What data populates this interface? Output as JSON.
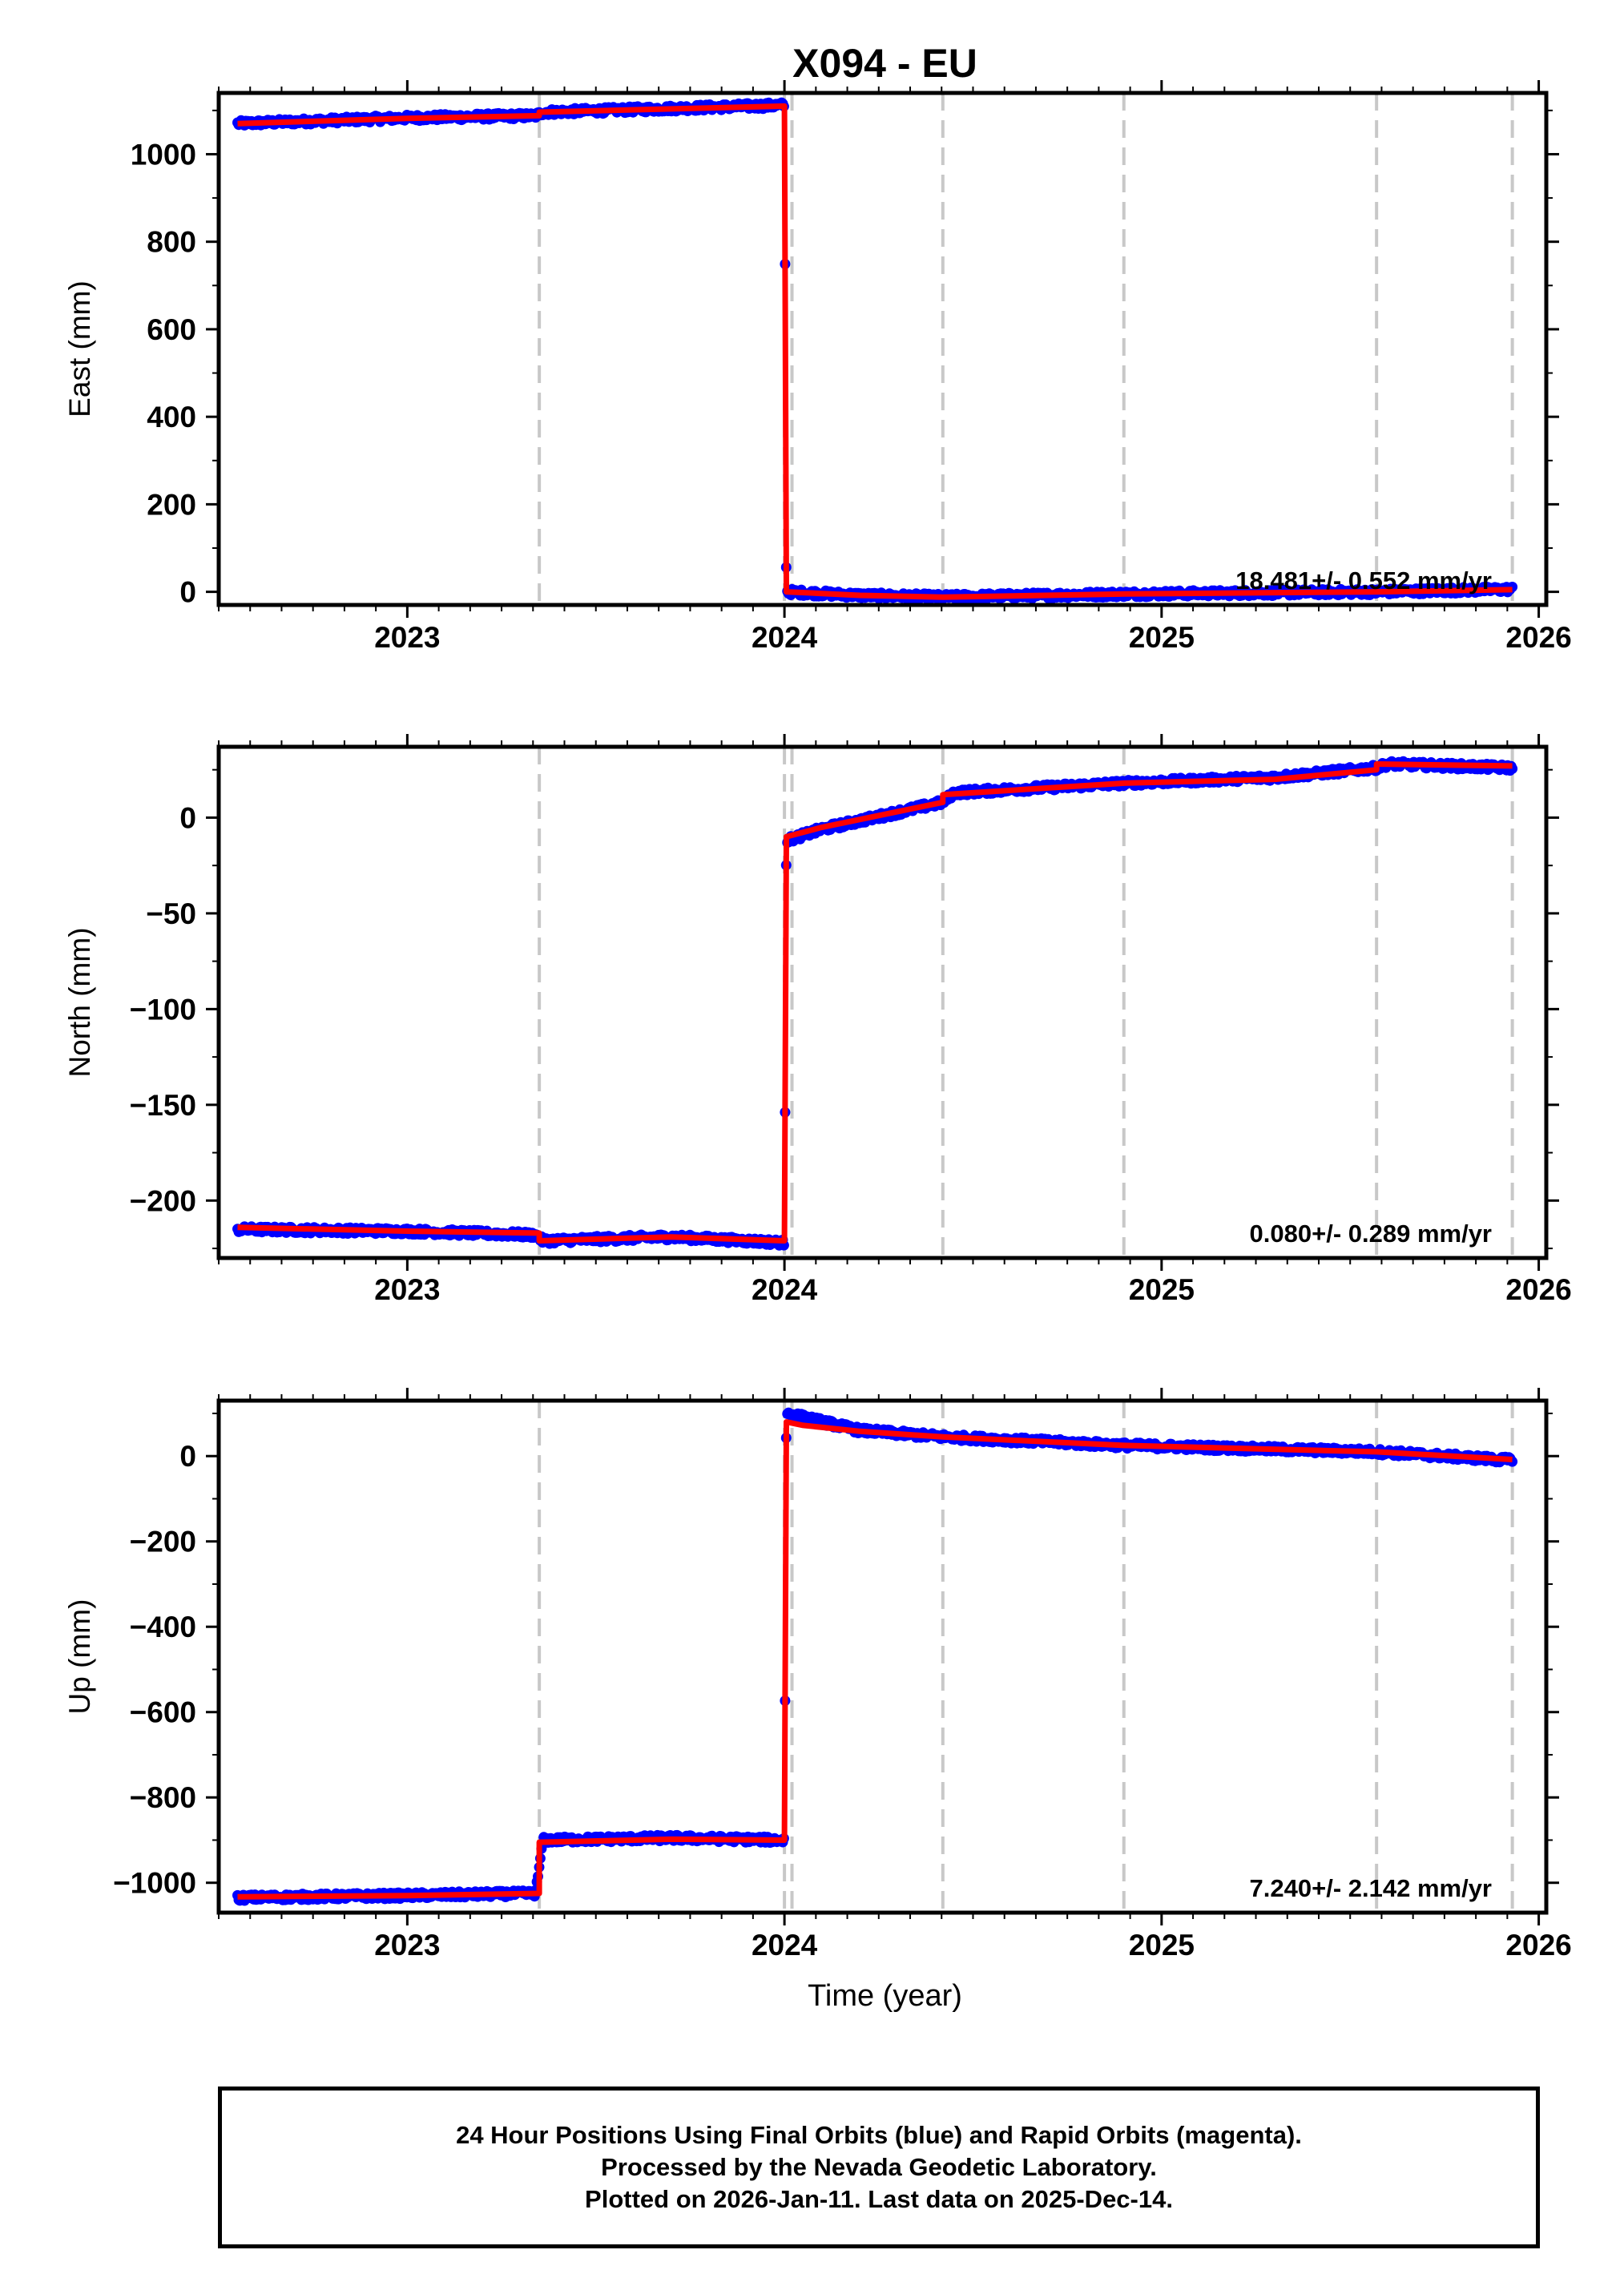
{
  "chart_data": [
    {
      "type": "scatter",
      "title": "X094 - EU",
      "xlabel": "",
      "ylabel": "East (mm)",
      "xlim": [
        2022.5,
        2026.02
      ],
      "ylim": [
        -30,
        1140
      ],
      "yticks": [
        0,
        200,
        400,
        600,
        800,
        1000
      ],
      "yticklabels": [
        "0",
        "200",
        "400",
        "600",
        "800",
        "1000"
      ],
      "xticks": [
        2023,
        2024,
        2025,
        2026
      ],
      "xticklabels": [
        "2023",
        "2024",
        "2025",
        "2026"
      ],
      "rate_label": "18.481+/- 0.552 mm/yr",
      "grid": false,
      "event_lines": [
        2023.35,
        2024.0,
        2024.02,
        2024.42,
        2024.9,
        2025.57,
        2025.93
      ],
      "series": [
        {
          "color": "#0000ff",
          "x": [
            2022.55,
            2023.0,
            2023.34,
            2023.36,
            2024.0,
            2024.005,
            2024.2,
            2024.42,
            2024.9,
            2025.57,
            2025.93
          ],
          "y": [
            1070,
            1083,
            1088,
            1096,
            1112,
            0,
            -8,
            -12,
            -5,
            0,
            6
          ]
        },
        {
          "color": "#ff0000",
          "x": [
            2022.55,
            2023.0,
            2023.35,
            2023.35,
            2024.0,
            2024.005,
            2024.2,
            2024.42,
            2024.9,
            2025.57,
            2025.93
          ],
          "y": [
            1070,
            1082,
            1088,
            1096,
            1110,
            0,
            -8,
            -12,
            -5,
            0,
            5
          ]
        }
      ]
    },
    {
      "type": "scatter",
      "title": "",
      "xlabel": "",
      "ylabel": "North (mm)",
      "xlim": [
        2022.5,
        2026.02
      ],
      "ylim": [
        -230,
        37
      ],
      "yticks": [
        -200,
        -150,
        -100,
        -50,
        0
      ],
      "yticklabels": [
        "−200",
        "−150",
        "−100",
        "−50",
        "0"
      ],
      "xticks": [
        2023,
        2024,
        2025,
        2026
      ],
      "xticklabels": [
        "2023",
        "2024",
        "2025",
        "2026"
      ],
      "rate_label": "0.080+/- 0.289 mm/yr",
      "grid": false,
      "event_lines": [
        2023.35,
        2024.0,
        2024.02,
        2024.42,
        2024.9,
        2025.57,
        2025.93
      ],
      "series": [
        {
          "color": "#0000ff",
          "x": [
            2022.55,
            2023.0,
            2023.34,
            2023.36,
            2023.7,
            2024.0,
            2024.005,
            2024.1,
            2024.42,
            2024.45,
            2024.9,
            2025.3,
            2025.57,
            2025.6,
            2025.93
          ],
          "y": [
            -215,
            -216,
            -218,
            -221,
            -219,
            -222,
            -12,
            -6,
            8,
            13,
            18,
            21,
            26,
            28,
            26
          ]
        },
        {
          "color": "#ff0000",
          "x": [
            2022.55,
            2023.0,
            2023.35,
            2023.35,
            2023.7,
            2024.0,
            2024.005,
            2024.1,
            2024.42,
            2024.42,
            2024.9,
            2025.3,
            2025.57,
            2025.57,
            2025.93
          ],
          "y": [
            -214,
            -216,
            -217,
            -221,
            -219,
            -221,
            -10,
            -5,
            8,
            12,
            18,
            20,
            25,
            28,
            27
          ]
        }
      ]
    },
    {
      "type": "scatter",
      "title": "",
      "xlabel": "Time (year)",
      "ylabel": "Up (mm)",
      "xlim": [
        2022.5,
        2026.02
      ],
      "ylim": [
        -1070,
        130
      ],
      "yticks": [
        -1000,
        -800,
        -600,
        -400,
        -200,
        0
      ],
      "yticklabels": [
        "−1000",
        "−800",
        "−600",
        "−400",
        "−200",
        "0"
      ],
      "xticks": [
        2023,
        2024,
        2025,
        2026
      ],
      "xticklabels": [
        "2023",
        "2024",
        "2025",
        "2026"
      ],
      "rate_label": "7.240+/- 2.142 mm/yr",
      "grid": false,
      "event_lines": [
        2023.35,
        2024.0,
        2024.02,
        2024.42,
        2024.9,
        2025.57,
        2025.93
      ],
      "series": [
        {
          "color": "#0000ff",
          "x": [
            2022.55,
            2023.0,
            2023.34,
            2023.36,
            2023.7,
            2024.0,
            2024.005,
            2024.2,
            2024.42,
            2024.9,
            2025.57,
            2025.93
          ],
          "y": [
            -1035,
            -1030,
            -1025,
            -900,
            -895,
            -900,
            100,
            60,
            45,
            25,
            10,
            -10
          ]
        },
        {
          "color": "#ff0000",
          "x": [
            2022.55,
            2023.0,
            2023.35,
            2023.35,
            2023.7,
            2024.0,
            2024.005,
            2024.05,
            2024.2,
            2024.42,
            2024.9,
            2025.57,
            2025.93
          ],
          "y": [
            -1033,
            -1030,
            -1025,
            -905,
            -898,
            -900,
            80,
            72,
            58,
            45,
            25,
            10,
            -8
          ]
        }
      ]
    }
  ],
  "footer": {
    "line1": "24 Hour Positions Using Final Orbits (blue) and Rapid Orbits (magenta).",
    "line2": "Processed by the Nevada Geodetic Laboratory.",
    "line3": "Plotted on 2026-Jan-11. Last data on 2025-Dec-14."
  }
}
